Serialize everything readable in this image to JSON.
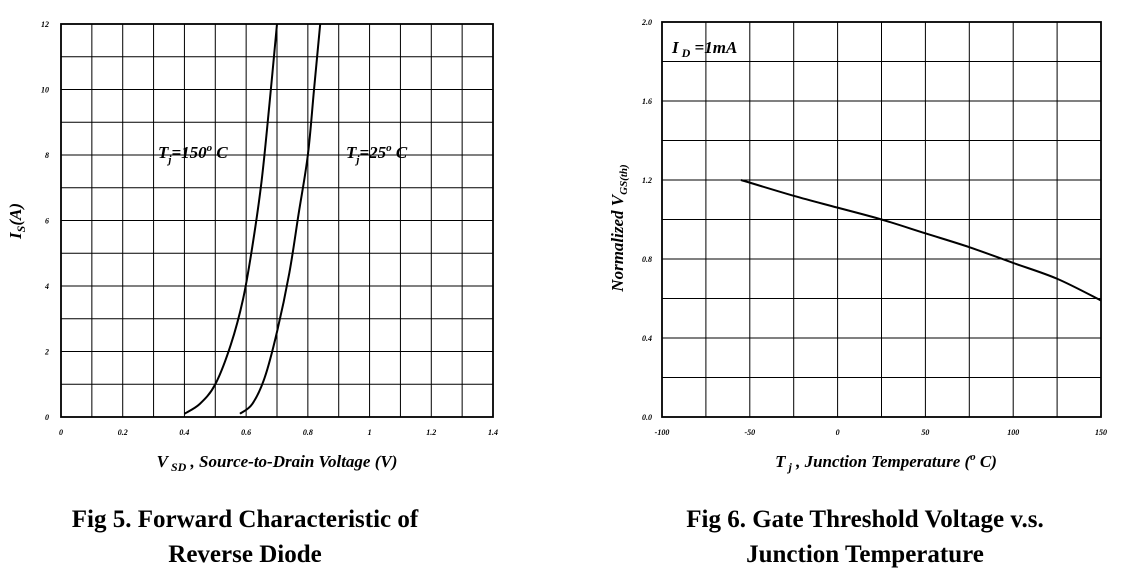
{
  "chart_data": [
    {
      "type": "line",
      "caption": [
        "Fig 5. Forward Characteristic of",
        "Reverse Diode"
      ],
      "xlabel": {
        "main": "V",
        "sub": "SD",
        "rest": " , Source-to-Drain Voltage (V)"
      },
      "ylabel": {
        "main": "I",
        "sub": "S",
        "rest": "(A)"
      },
      "xlim": [
        0,
        1.4
      ],
      "ylim": [
        0,
        12
      ],
      "xticks": [
        "0",
        "0.2",
        "0.4",
        "0.6",
        "0.8",
        "1",
        "1.2",
        "1.4"
      ],
      "yticks": [
        "0",
        "2",
        "4",
        "6",
        "8",
        "10",
        "12"
      ],
      "grid": true,
      "series": [
        {
          "name": "Tj=150° C",
          "label": {
            "pre": "T",
            "sub": "j",
            "mid": "=150",
            "sup": "o",
            "post": " C"
          },
          "x": [
            0.4,
            0.45,
            0.5,
            0.55,
            0.59,
            0.62,
            0.65,
            0.675,
            0.7
          ],
          "y": [
            0.1,
            0.4,
            1.0,
            2.2,
            3.6,
            5.2,
            7.2,
            9.5,
            12.0
          ]
        },
        {
          "name": "Tj=25° C",
          "label": {
            "pre": "T",
            "sub": "j",
            "mid": "=25",
            "sup": "o",
            "post": " C"
          },
          "x": [
            0.58,
            0.62,
            0.66,
            0.7,
            0.74,
            0.77,
            0.8,
            0.82,
            0.84
          ],
          "y": [
            0.1,
            0.4,
            1.2,
            2.6,
            4.4,
            6.2,
            8.0,
            10.0,
            12.0
          ]
        }
      ]
    },
    {
      "type": "line",
      "caption": [
        "Fig 6. Gate Threshold Voltage v.s.",
        "Junction Temperature"
      ],
      "xlabel": {
        "main": "T",
        "sub": "j",
        "mid": " , Junction Temperature (",
        "sup": "o",
        "rest": " C)"
      },
      "ylabel": {
        "main": "Normalized V",
        "sub": "GS(th)"
      },
      "xlim": [
        -100,
        150
      ],
      "ylim": [
        0.0,
        2.0
      ],
      "xticks": [
        "-100",
        "-50",
        "0",
        "50",
        "100",
        "150"
      ],
      "yticks": [
        "0.0",
        "0.4",
        "0.8",
        "1.2",
        "1.6",
        "2.0"
      ],
      "grid": true,
      "annotation": {
        "main": "I",
        "sub": "D",
        "rest": "=1mA"
      },
      "series": [
        {
          "x": [
            -55,
            -25,
            0,
            25,
            50,
            75,
            100,
            125,
            150
          ],
          "y": [
            1.2,
            1.12,
            1.06,
            1.0,
            0.93,
            0.86,
            0.78,
            0.7,
            0.59
          ]
        }
      ]
    }
  ]
}
